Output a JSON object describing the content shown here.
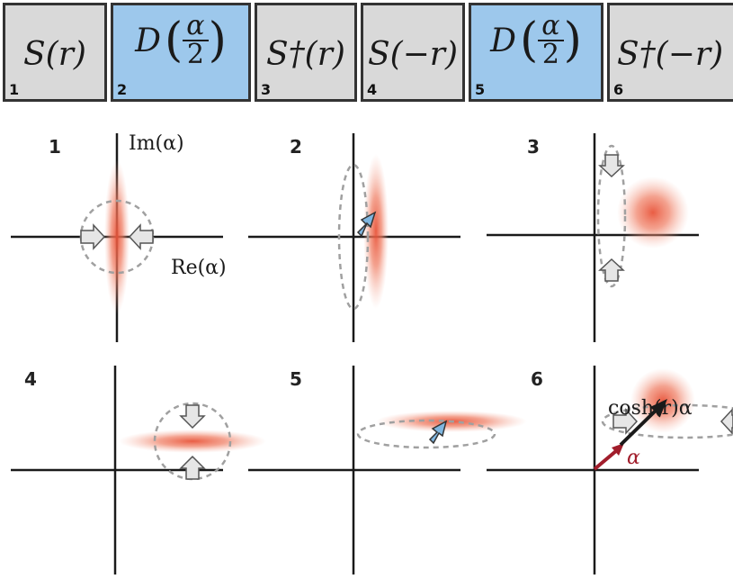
{
  "gates": [
    {
      "expr": "S(r)",
      "num": "1",
      "color": "#d9d9d9"
    },
    {
      "d_letter": "D",
      "numerator": "α",
      "denominator": "2",
      "num": "2",
      "color": "#9dc8ec"
    },
    {
      "expr": "S†(r)",
      "num": "3",
      "color": "#d9d9d9"
    },
    {
      "expr": "S(−r)",
      "num": "4",
      "color": "#d9d9d9"
    },
    {
      "d_letter": "D",
      "numerator": "α",
      "denominator": "2",
      "num": "5",
      "color": "#9dc8ec"
    },
    {
      "expr": "S†(−r)",
      "num": "6",
      "color": "#d9d9d9"
    }
  ],
  "panels": [
    {
      "num": "1",
      "im_label": "Im(α)",
      "re_label": "Re(α)"
    },
    {
      "num": "2"
    },
    {
      "num": "3"
    },
    {
      "num": "4"
    },
    {
      "num": "5"
    },
    {
      "num": "6",
      "alpha_label": "α",
      "cosh_label": "cosh(r)α"
    }
  ],
  "colors": {
    "gate_gray": "#d9d9d9",
    "gate_blue": "#9dc8ec",
    "state_red": "#e8543a",
    "dashed_gray": "#a0a0a0",
    "arrow_blue": "#7fb6e0",
    "arrow_white": "#e6e6e6",
    "alpha_red": "#a11d2b"
  }
}
